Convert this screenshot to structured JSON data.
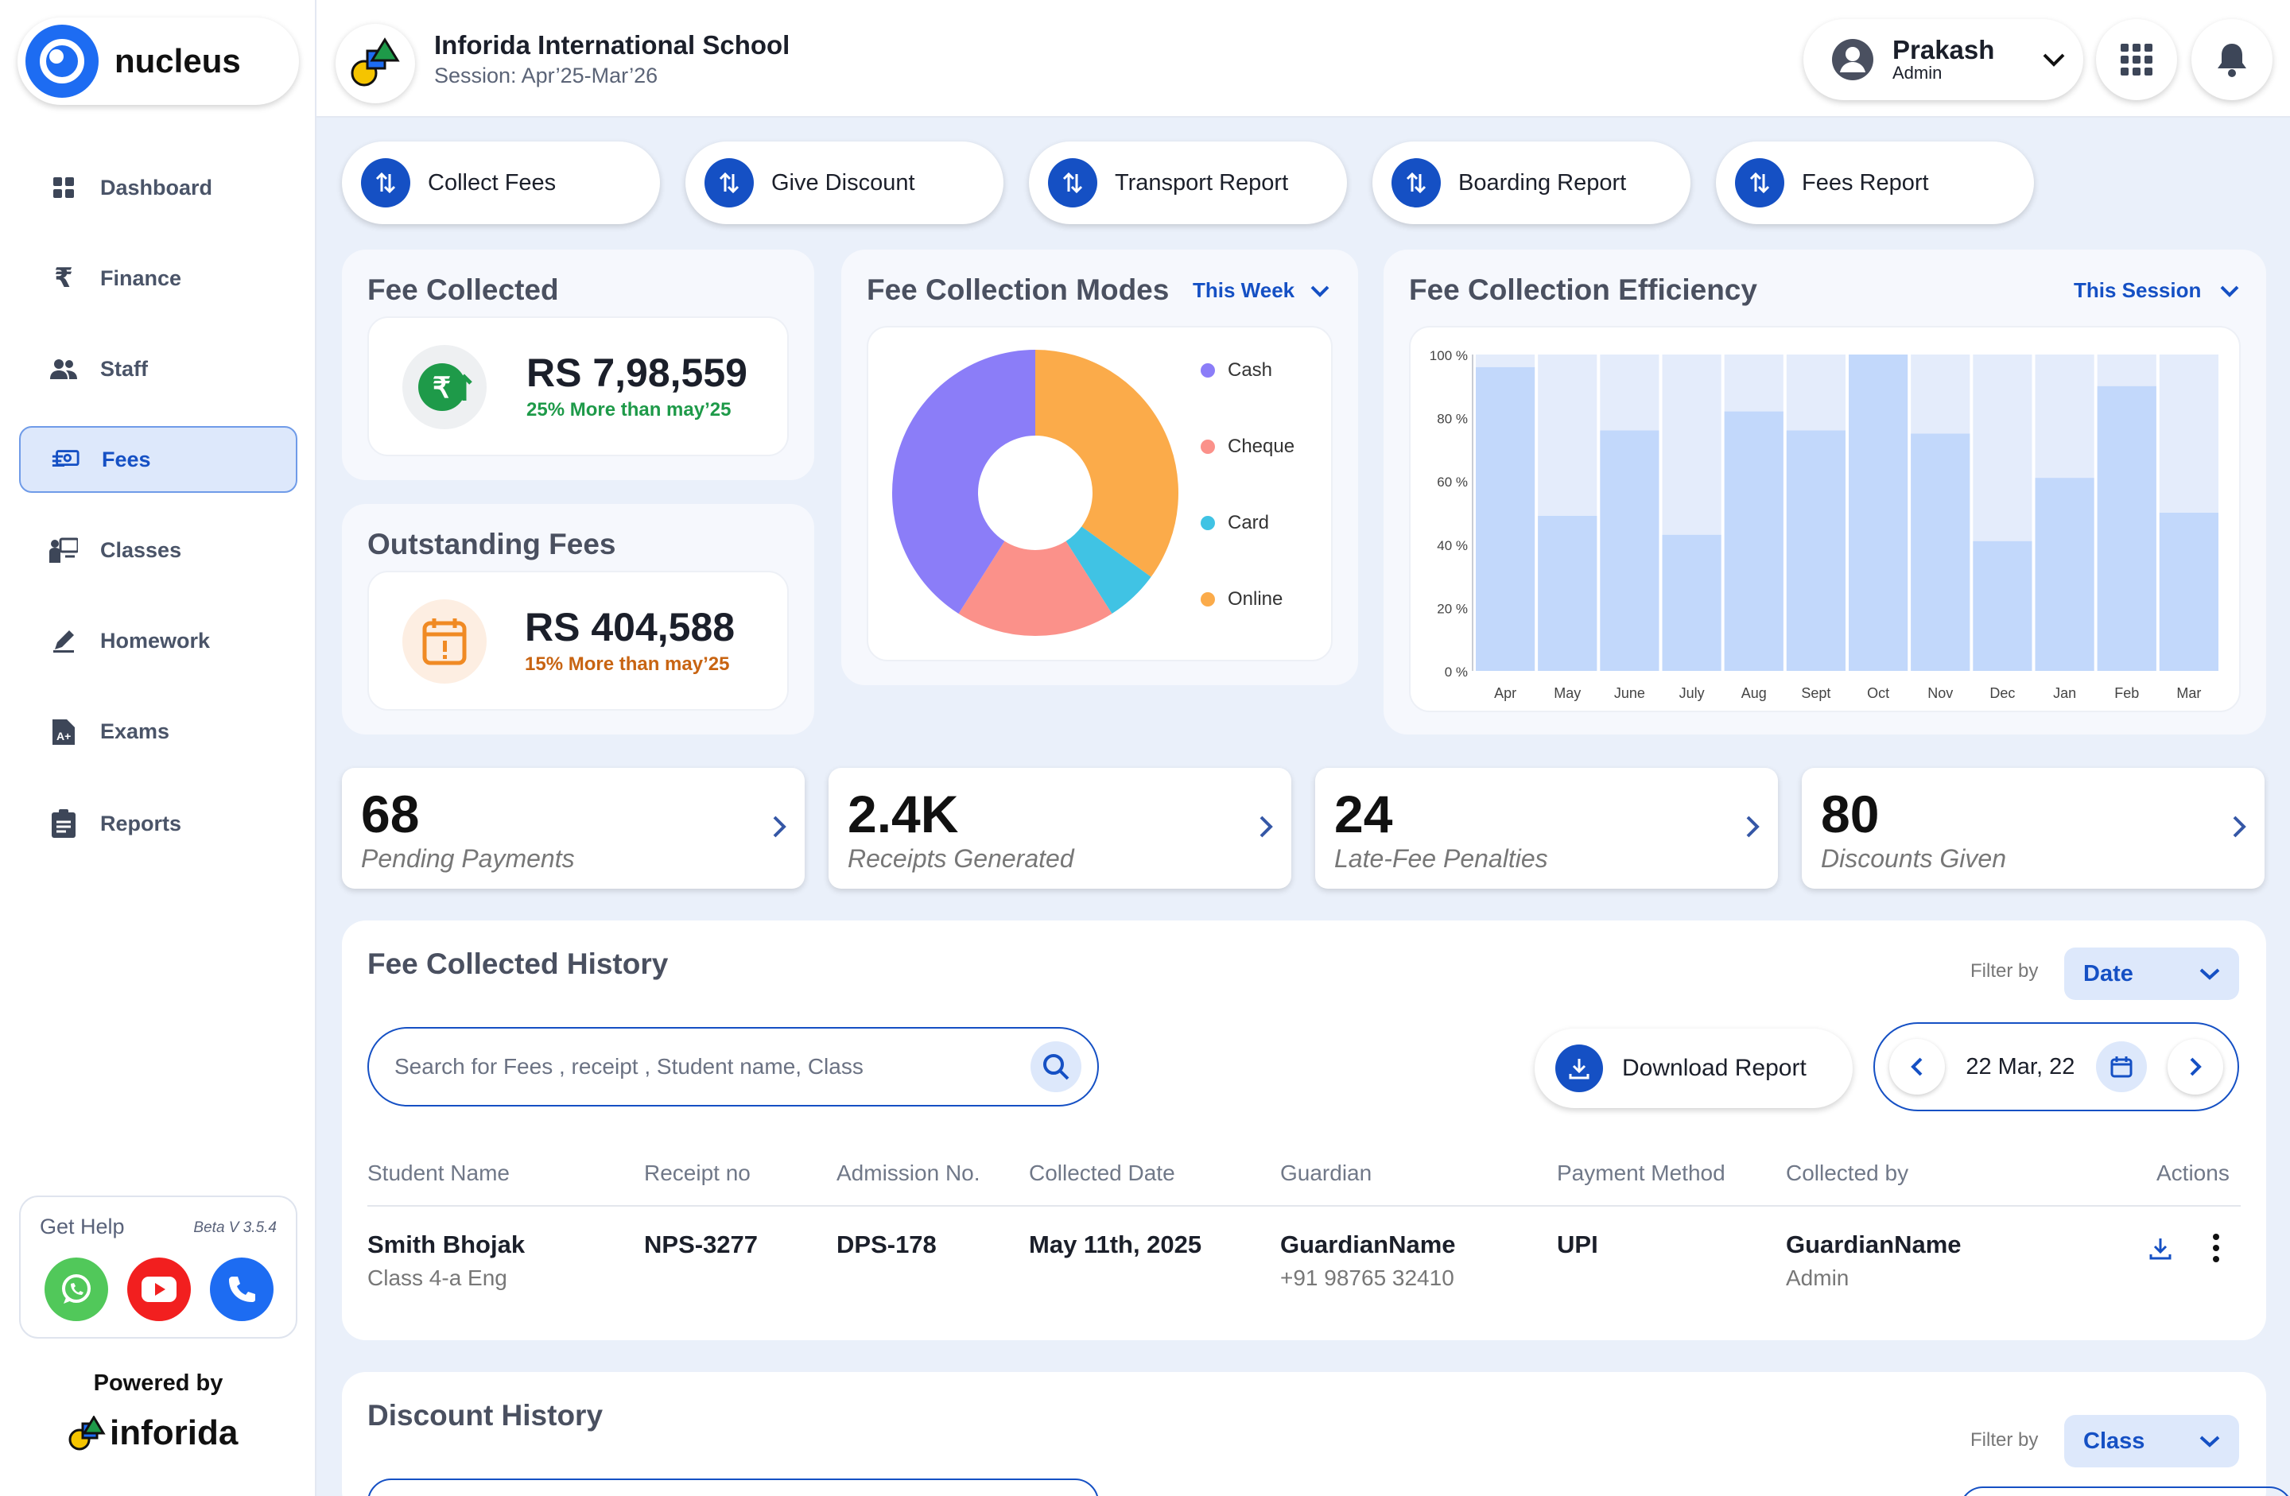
{
  "brand": {
    "name": "nucleus"
  },
  "sidebar": {
    "items": [
      {
        "label": "Dashboard",
        "icon": "grid-icon"
      },
      {
        "label": "Finance",
        "icon": "rupee-icon"
      },
      {
        "label": "Staff",
        "icon": "people-icon"
      },
      {
        "label": "Fees",
        "icon": "money-icon",
        "active": true
      },
      {
        "label": "Classes",
        "icon": "classroom-icon"
      },
      {
        "label": "Homework",
        "icon": "pencil-icon"
      },
      {
        "label": "Exams",
        "icon": "exam-icon"
      },
      {
        "label": "Reports",
        "icon": "clipboard-icon"
      }
    ],
    "help": {
      "title": "Get Help",
      "version": "Beta V 3.5.4"
    },
    "powered_by": "Powered by",
    "powered_brand": "inforida"
  },
  "header": {
    "school": "Inforida International School",
    "session": "Session: Apr’25-Mar’26",
    "user": {
      "name": "Prakash",
      "role": "Admin"
    }
  },
  "quick_actions": [
    "Collect Fees",
    "Give Discount",
    "Transport Report",
    "Boarding Report",
    "Fees Report"
  ],
  "fee_collected": {
    "title": "Fee Collected",
    "value": "RS 7,98,559",
    "note": "25% More than may’25",
    "accent": "#1e9a49"
  },
  "outstanding": {
    "title": "Outstanding Fees",
    "value": "RS 404,588",
    "note": "15% More than may’25",
    "accent": "#c86412"
  },
  "modes": {
    "title": "Fee Collection Modes",
    "period": "This Week"
  },
  "efficiency": {
    "title": "Fee Collection Efficiency",
    "period": "This Session"
  },
  "chart_data": [
    {
      "type": "pie",
      "title": "Fee Collection Modes",
      "donut": true,
      "slices": [
        {
          "name": "Online",
          "value": 35,
          "color": "#fbab4a"
        },
        {
          "name": "Card",
          "value": 6,
          "color": "#40c3e4"
        },
        {
          "name": "Cheque",
          "value": 18,
          "color": "#fb918a"
        },
        {
          "name": "Cash",
          "value": 41,
          "color": "#8b7df8"
        }
      ],
      "legend": [
        {
          "name": "Cash",
          "color": "#8b7df8"
        },
        {
          "name": "Cheque",
          "color": "#fb918a"
        },
        {
          "name": "Card",
          "color": "#40c3e4"
        },
        {
          "name": "Online",
          "color": "#fbab4a"
        }
      ],
      "legend_placement": "right"
    },
    {
      "type": "bar",
      "title": "Fee Collection Efficiency",
      "categories": [
        "Apr",
        "May",
        "June",
        "July",
        "Aug",
        "Sept",
        "Oct",
        "Nov",
        "Dec",
        "Jan",
        "Feb",
        "Mar"
      ],
      "values": [
        96,
        49,
        76,
        43,
        82,
        76,
        100,
        75,
        41,
        61,
        90,
        50
      ],
      "ylim": [
        0,
        100
      ],
      "yticks": [
        "100 %",
        "80 %",
        "60 %",
        "40 %",
        "20 %",
        "0 %"
      ],
      "color": "#c2d8fb",
      "track_color": "#e4ecfb"
    }
  ],
  "kpis": [
    {
      "value": "68",
      "label": "Pending Payments"
    },
    {
      "value": "2.4K",
      "label": "Receipts Generated"
    },
    {
      "value": "24",
      "label": "Late-Fee Penalties"
    },
    {
      "value": "80",
      "label": "Discounts Given"
    }
  ],
  "history": {
    "title": "Fee Collected History",
    "filter_label": "Filter by",
    "filter_value": "Date",
    "search_placeholder": "Search for Fees  , receipt , Student name, Class",
    "download": "Download Report",
    "date": "22 Mar, 22",
    "columns": [
      "Student Name",
      "Receipt no",
      "Admission No.",
      "Collected Date",
      "Guardian",
      "Payment Method",
      "Collected by",
      "Actions"
    ],
    "rows": [
      {
        "student": "Smith Bhojak",
        "class": "Class 4-a Eng",
        "receipt": "NPS-3277",
        "admission": "DPS-178",
        "date": "May 11th, 2025",
        "guardian": "GuardianName",
        "phone": "+91 98765 32410",
        "method": "UPI",
        "collector": "GuardianName",
        "collector_role": "Admin"
      }
    ]
  },
  "discount": {
    "title": "Discount History",
    "filter_label": "Filter by",
    "filter_value": "Class"
  }
}
